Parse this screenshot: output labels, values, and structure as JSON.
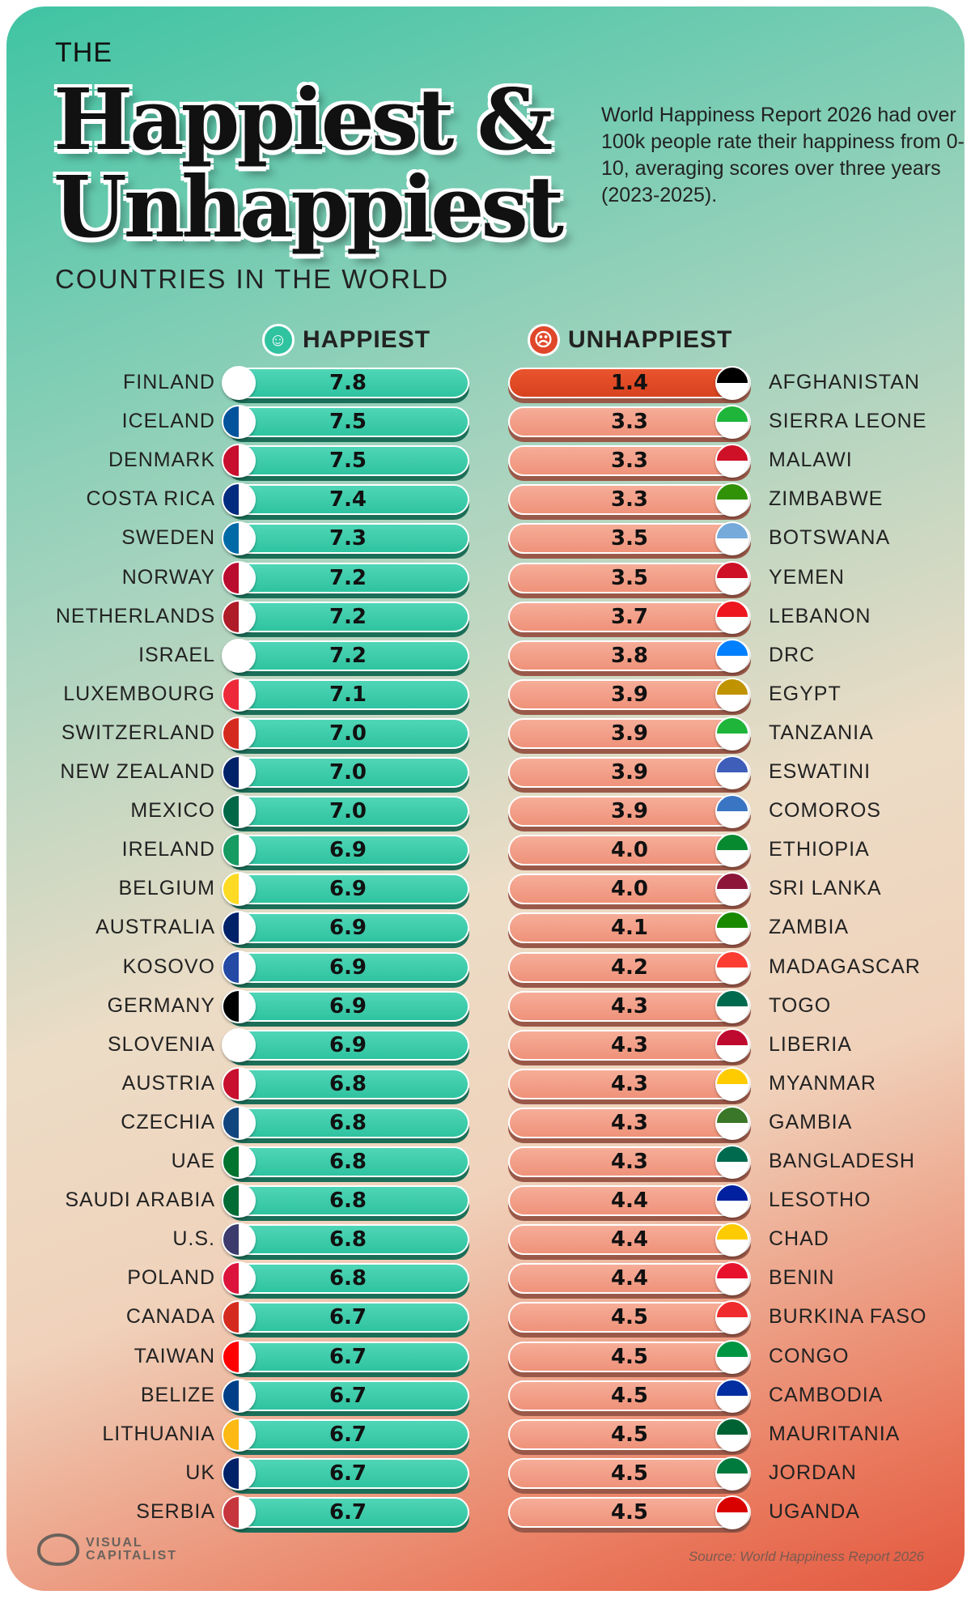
{
  "title": {
    "pre": "THE",
    "line1": "Happiest &",
    "line2": "Unhappiest",
    "sub": "COUNTRIES IN THE WORLD"
  },
  "description": "World Happiness Report 2026 had over 100k people rate their happiness from 0-10, averaging scores over three years (2023-2025).",
  "source": "Source: World Happiness Report 2026",
  "logo": "VISUAL CAPITALIST",
  "colors": {
    "happy": "#2fc3a0",
    "unhappy": "#ef927a",
    "unhappy_top": "#d8421f"
  },
  "chart_data": [
    {
      "type": "table",
      "title": "HAPPIEST",
      "icon": "smile-icon",
      "categories": [
        "FINLAND",
        "ICELAND",
        "DENMARK",
        "COSTA RICA",
        "SWEDEN",
        "NORWAY",
        "NETHERLANDS",
        "ISRAEL",
        "LUXEMBOURG",
        "SWITZERLAND",
        "NEW ZEALAND",
        "MEXICO",
        "IRELAND",
        "BELGIUM",
        "AUSTRALIA",
        "KOSOVO",
        "GERMANY",
        "SLOVENIA",
        "AUSTRIA",
        "CZECHIA",
        "UAE",
        "SAUDI ARABIA",
        "U.S.",
        "POLAND",
        "CANADA",
        "TAIWAN",
        "BELIZE",
        "LITHUANIA",
        "UK",
        "SERBIA"
      ],
      "values": [
        "7.8",
        "7.5",
        "7.5",
        "7.4",
        "7.3",
        "7.2",
        "7.2",
        "7.2",
        "7.1",
        "7.0",
        "7.0",
        "7.0",
        "6.9",
        "6.9",
        "6.9",
        "6.9",
        "6.9",
        "6.9",
        "6.8",
        "6.8",
        "6.8",
        "6.8",
        "6.8",
        "6.8",
        "6.7",
        "6.7",
        "6.7",
        "6.7",
        "6.7",
        "6.7"
      ]
    },
    {
      "type": "table",
      "title": "UNHAPPIEST",
      "icon": "frown-icon",
      "categories": [
        "AFGHANISTAN",
        "SIERRA LEONE",
        "MALAWI",
        "ZIMBABWE",
        "BOTSWANA",
        "YEMEN",
        "LEBANON",
        "DRC",
        "EGYPT",
        "TANZANIA",
        "ESWATINI",
        "COMOROS",
        "ETHIOPIA",
        "SRI LANKA",
        "ZAMBIA",
        "MADAGASCAR",
        "TOGO",
        "LIBERIA",
        "MYANMAR",
        "GAMBIA",
        "BANGLADESH",
        "LESOTHO",
        "CHAD",
        "BENIN",
        "BURKINA FASO",
        "CONGO",
        "CAMBODIA",
        "MAURITANIA",
        "JORDAN",
        "UGANDA"
      ],
      "values": [
        "1.4",
        "3.3",
        "3.3",
        "3.3",
        "3.5",
        "3.5",
        "3.7",
        "3.8",
        "3.9",
        "3.9",
        "3.9",
        "3.9",
        "4.0",
        "4.0",
        "4.1",
        "4.2",
        "4.3",
        "4.3",
        "4.3",
        "4.3",
        "4.3",
        "4.4",
        "4.4",
        "4.4",
        "4.5",
        "4.5",
        "4.5",
        "4.5",
        "4.5",
        "4.5"
      ]
    }
  ]
}
